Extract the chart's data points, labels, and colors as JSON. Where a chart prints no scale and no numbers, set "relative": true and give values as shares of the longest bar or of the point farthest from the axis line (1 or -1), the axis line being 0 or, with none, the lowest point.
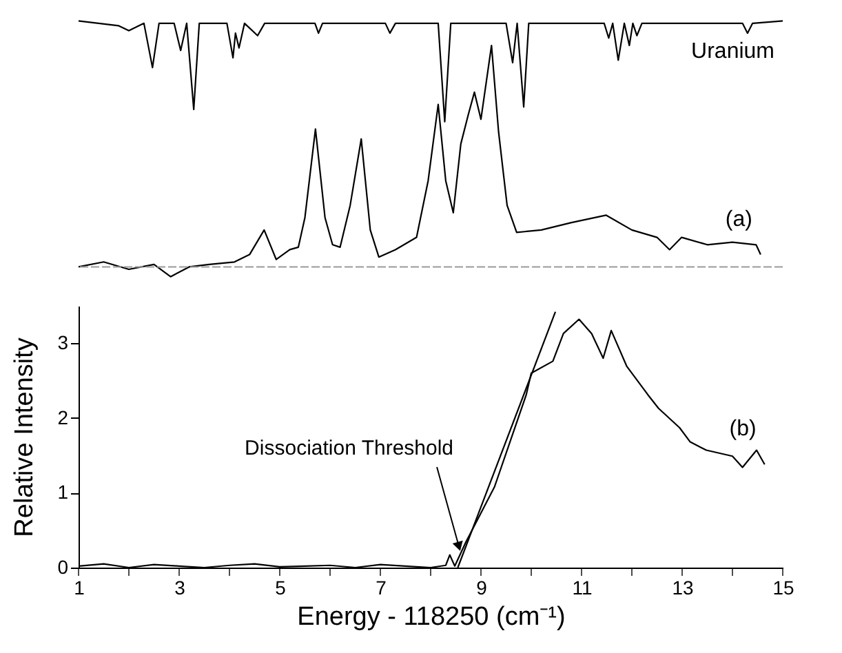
{
  "chart_data": [
    {
      "type": "line",
      "relative": true,
      "xlim": [
        1,
        15
      ],
      "tick_labels": false,
      "grid": false,
      "legend": false,
      "ref_lines": [
        {
          "axis": "y",
          "value": 0,
          "color": "#999999",
          "line_style": "dashed"
        }
      ],
      "series": [
        {
          "name": "Uranium",
          "color": "#000000",
          "x": [
            1,
            1.8,
            2.0,
            2.3,
            2.47,
            2.6,
            2.9,
            3.03,
            3.15,
            3.29,
            3.4,
            3.95,
            4.07,
            4.12,
            4.19,
            4.3,
            4.56,
            4.7,
            5.7,
            5.77,
            5.85,
            7.1,
            7.19,
            7.3,
            8.15,
            8.28,
            8.4,
            9.5,
            9.63,
            9.72,
            9.85,
            9.95,
            11.45,
            11.54,
            11.62,
            11.73,
            11.85,
            11.95,
            12.02,
            12.1,
            12.2,
            14.2,
            14.3,
            14.4,
            15
          ],
          "values": [
            1,
            0.98,
            0.96,
            0.99,
            0.81,
            0.99,
            0.99,
            0.88,
            0.99,
            0.64,
            0.99,
            0.99,
            0.85,
            0.95,
            0.89,
            0.99,
            0.94,
            0.99,
            0.99,
            0.95,
            0.99,
            0.99,
            0.95,
            0.99,
            0.99,
            0.59,
            0.99,
            0.99,
            0.83,
            0.99,
            0.65,
            0.99,
            0.99,
            0.93,
            0.99,
            0.84,
            0.99,
            0.9,
            0.99,
            0.94,
            0.99,
            0.99,
            0.95,
            0.99,
            1
          ]
        },
        {
          "name": "(a)",
          "color": "#000000",
          "x": [
            1,
            1.5,
            2,
            2.5,
            2.83,
            3.2,
            3.6,
            4.1,
            4.4,
            4.69,
            4.93,
            5.2,
            5.37,
            5.5,
            5.71,
            5.9,
            6.05,
            6.2,
            6.4,
            6.62,
            6.8,
            6.97,
            7.3,
            7.72,
            7.95,
            8.15,
            8.3,
            8.45,
            8.6,
            8.75,
            8.87,
            9.0,
            9.21,
            9.35,
            9.52,
            9.71,
            10.2,
            10.8,
            11.49,
            12.0,
            12.5,
            12.75,
            12.99,
            13.5,
            14.0,
            14.47,
            14.56
          ],
          "values": [
            0.0,
            0.02,
            -0.01,
            0.01,
            -0.04,
            0.0,
            0.01,
            0.02,
            0.05,
            0.15,
            0.03,
            0.07,
            0.08,
            0.2,
            0.56,
            0.2,
            0.09,
            0.08,
            0.25,
            0.52,
            0.15,
            0.04,
            0.07,
            0.12,
            0.35,
            0.66,
            0.35,
            0.22,
            0.5,
            0.62,
            0.71,
            0.6,
            0.9,
            0.55,
            0.25,
            0.14,
            0.15,
            0.18,
            0.21,
            0.15,
            0.12,
            0.07,
            0.12,
            0.09,
            0.1,
            0.09,
            0.05
          ]
        }
      ]
    },
    {
      "type": "line",
      "xlabel": "Energy - 118250 (cm⁻¹)",
      "ylabel": "Relative Intensity",
      "xlim": [
        1,
        15
      ],
      "ylim": [
        0,
        3.5
      ],
      "grid": false,
      "legend": false,
      "xticks": [
        1,
        {
          "value": 2,
          "label": null
        },
        3,
        {
          "value": 4,
          "label": null
        },
        5,
        {
          "value": 6,
          "label": null
        },
        7,
        {
          "value": 8,
          "label": null
        },
        9,
        {
          "value": 10,
          "label": null
        },
        11,
        {
          "value": 12,
          "label": null
        },
        13,
        {
          "value": 14,
          "label": null
        },
        15
      ],
      "yticks": [
        0,
        1,
        2,
        3
      ],
      "annotations": [
        {
          "text": "Dissociation Threshold",
          "x": 8.6,
          "y": 0.19
        }
      ],
      "series": [
        {
          "name": "(b)",
          "color": "#000000",
          "x": [
            1,
            1.5,
            2,
            2.5,
            3,
            3.5,
            4,
            4.5,
            5,
            5.5,
            6,
            6.5,
            7,
            7.5,
            8,
            8.3,
            8.38,
            8.48,
            8.7,
            9.27,
            9.9,
            10.0,
            10.43,
            10.64,
            10.95,
            11.2,
            11.43,
            11.59,
            11.9,
            12.32,
            12.53,
            12.95,
            13.16,
            13.48,
            14.0,
            14.2,
            14.48,
            14.64
          ],
          "values": [
            0.02,
            0.05,
            0.0,
            0.04,
            0.02,
            0.0,
            0.03,
            0.05,
            0.01,
            0.02,
            0.03,
            0.0,
            0.04,
            0.02,
            0.0,
            0.03,
            0.17,
            0.02,
            0.34,
            1.08,
            2.31,
            2.6,
            2.76,
            3.13,
            3.32,
            3.13,
            2.8,
            3.17,
            2.69,
            2.31,
            2.13,
            1.87,
            1.68,
            1.57,
            1.49,
            1.34,
            1.57,
            1.38
          ]
        },
        {
          "type": "line",
          "color": "#000000",
          "x": [
            8.54,
            10.48
          ],
          "values": [
            0,
            3.42
          ]
        }
      ]
    }
  ]
}
